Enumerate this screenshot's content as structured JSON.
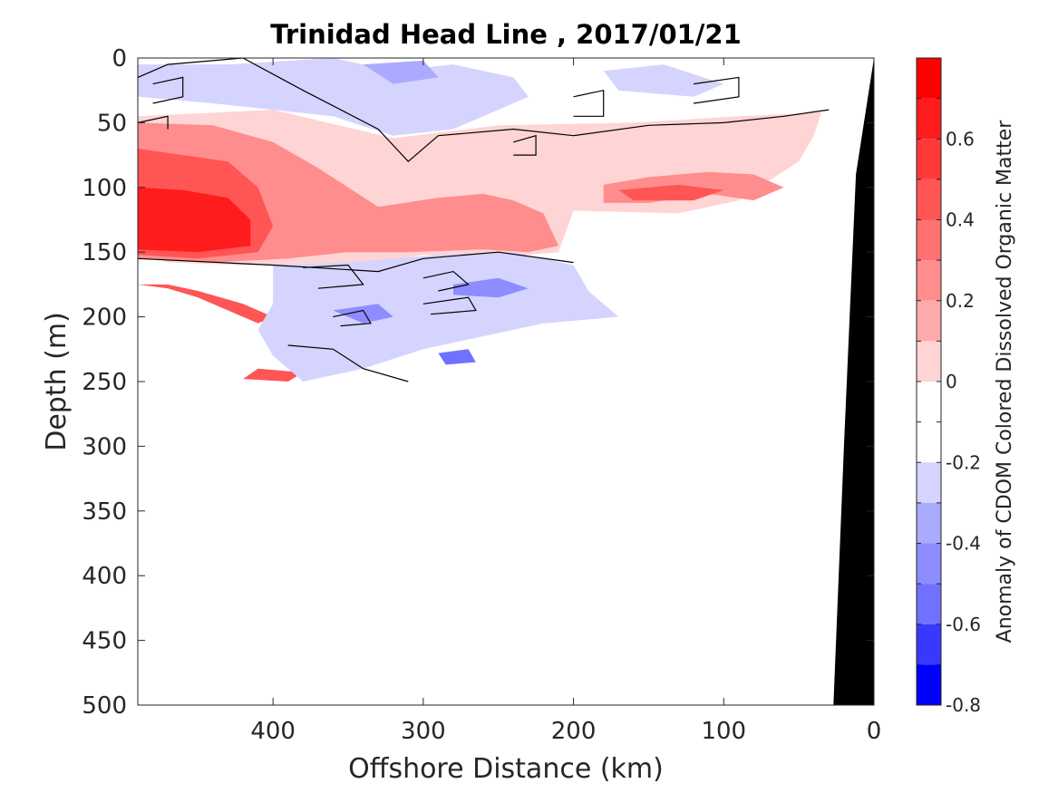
{
  "chart_data": {
    "type": "heatmap",
    "title": "Trinidad Head Line , 2017/01/21",
    "xlabel": "Offshore Distance (km)",
    "ylabel": "Depth (m)",
    "xlim": [
      490,
      0
    ],
    "ylim": [
      0,
      500
    ],
    "x_reversed": true,
    "y_reversed": true,
    "x_ticks": [
      400,
      300,
      200,
      100,
      0
    ],
    "y_ticks": [
      0,
      50,
      100,
      150,
      200,
      250,
      300,
      350,
      400,
      450,
      500
    ],
    "colorbar": {
      "label": "Anomaly of CDOM Colored Dissolved Organic Matter",
      "range": [
        -0.8,
        0.8
      ],
      "ticks": [
        0.6,
        0.4,
        0.2,
        0,
        -0.2,
        -0.4,
        -0.6,
        -0.8
      ],
      "levels": [
        {
          "from": 0.7,
          "to": 0.8,
          "color": "#ff0000"
        },
        {
          "from": 0.6,
          "to": 0.7,
          "color": "#ff1c1c"
        },
        {
          "from": 0.5,
          "to": 0.6,
          "color": "#ff3838"
        },
        {
          "from": 0.4,
          "to": 0.5,
          "color": "#ff5555"
        },
        {
          "from": 0.3,
          "to": 0.4,
          "color": "#ff7171"
        },
        {
          "from": 0.2,
          "to": 0.3,
          "color": "#ff8d8d"
        },
        {
          "from": 0.1,
          "to": 0.2,
          "color": "#ffaaaa"
        },
        {
          "from": 0.0,
          "to": 0.1,
          "color": "#ffd4d4"
        },
        {
          "from": -0.1,
          "to": 0.0,
          "color": "#ffffff"
        },
        {
          "from": -0.2,
          "to": -0.1,
          "color": "#ffffff"
        },
        {
          "from": -0.3,
          "to": -0.2,
          "color": "#d4d4ff"
        },
        {
          "from": -0.4,
          "to": -0.3,
          "color": "#aaaaff"
        },
        {
          "from": -0.5,
          "to": -0.4,
          "color": "#8d8dff"
        },
        {
          "from": -0.6,
          "to": -0.5,
          "color": "#7171ff"
        },
        {
          "from": -0.7,
          "to": -0.6,
          "color": "#3838ff"
        },
        {
          "from": -0.8,
          "to": -0.7,
          "color": "#0000ff"
        }
      ]
    },
    "regions": [
      {
        "level": 0.1,
        "color": "#ffd4d4",
        "points": [
          [
            490,
            45
          ],
          [
            400,
            40
          ],
          [
            320,
            62
          ],
          [
            250,
            52
          ],
          [
            160,
            50
          ],
          [
            90,
            45
          ],
          [
            35,
            42
          ],
          [
            40,
            60
          ],
          [
            50,
            80
          ],
          [
            90,
            110
          ],
          [
            130,
            120
          ],
          [
            200,
            118
          ],
          [
            210,
            150
          ],
          [
            260,
            155
          ],
          [
            300,
            152
          ],
          [
            340,
            160
          ],
          [
            420,
            160
          ],
          [
            470,
            158
          ],
          [
            490,
            150
          ]
        ]
      },
      {
        "level": 0.3,
        "color": "#ff8d8d",
        "points": [
          [
            490,
            50
          ],
          [
            440,
            52
          ],
          [
            400,
            65
          ],
          [
            370,
            85
          ],
          [
            350,
            100
          ],
          [
            330,
            115
          ],
          [
            290,
            108
          ],
          [
            260,
            105
          ],
          [
            240,
            110
          ],
          [
            220,
            120
          ],
          [
            210,
            145
          ],
          [
            230,
            150
          ],
          [
            260,
            148
          ],
          [
            310,
            150
          ],
          [
            350,
            150
          ],
          [
            390,
            155
          ],
          [
            440,
            158
          ],
          [
            490,
            155
          ]
        ]
      },
      {
        "level": 0.3,
        "color": "#ff8d8d",
        "points": [
          [
            180,
            98
          ],
          [
            150,
            92
          ],
          [
            110,
            88
          ],
          [
            80,
            90
          ],
          [
            60,
            100
          ],
          [
            80,
            110
          ],
          [
            110,
            105
          ],
          [
            150,
            112
          ],
          [
            180,
            112
          ]
        ]
      },
      {
        "level": 0.5,
        "color": "#ff5555",
        "points": [
          [
            490,
            70
          ],
          [
            460,
            75
          ],
          [
            430,
            80
          ],
          [
            410,
            100
          ],
          [
            400,
            130
          ],
          [
            410,
            150
          ],
          [
            450,
            155
          ],
          [
            490,
            152
          ]
        ]
      },
      {
        "level": 0.5,
        "color": "#ff5555",
        "points": [
          [
            170,
            102
          ],
          [
            130,
            98
          ],
          [
            100,
            102
          ],
          [
            120,
            110
          ],
          [
            160,
            110
          ]
        ]
      },
      {
        "level": 0.7,
        "color": "#ff1c1c",
        "points": [
          [
            490,
            100
          ],
          [
            460,
            102
          ],
          [
            430,
            108
          ],
          [
            415,
            125
          ],
          [
            415,
            145
          ],
          [
            450,
            150
          ],
          [
            490,
            148
          ]
        ]
      },
      {
        "level": 0.4,
        "color": "#ff5555",
        "points": [
          [
            490,
            175
          ],
          [
            470,
            178
          ],
          [
            450,
            185
          ],
          [
            430,
            195
          ],
          [
            410,
            205
          ],
          [
            400,
            200
          ],
          [
            420,
            190
          ],
          [
            450,
            180
          ],
          [
            470,
            175
          ]
        ]
      },
      {
        "level": 0.4,
        "color": "#ff5555",
        "points": [
          [
            410,
            240
          ],
          [
            380,
            243
          ],
          [
            390,
            250
          ],
          [
            420,
            248
          ]
        ]
      },
      {
        "level": -0.2,
        "color": "#d4d4ff",
        "points": [
          [
            490,
            5
          ],
          [
            430,
            5
          ],
          [
            360,
            0
          ],
          [
            320,
            10
          ],
          [
            280,
            5
          ],
          [
            240,
            15
          ],
          [
            230,
            30
          ],
          [
            280,
            55
          ],
          [
            320,
            60
          ],
          [
            360,
            45
          ],
          [
            400,
            40
          ],
          [
            440,
            35
          ],
          [
            490,
            30
          ]
        ]
      },
      {
        "level": -0.2,
        "color": "#d4d4ff",
        "points": [
          [
            180,
            10
          ],
          [
            140,
            5
          ],
          [
            100,
            20
          ],
          [
            120,
            30
          ],
          [
            170,
            25
          ]
        ]
      },
      {
        "level": -0.3,
        "color": "#aaaaff",
        "points": [
          [
            340,
            5
          ],
          [
            300,
            2
          ],
          [
            290,
            15
          ],
          [
            320,
            20
          ]
        ]
      },
      {
        "level": -0.2,
        "color": "#d4d4ff",
        "points": [
          [
            400,
            160
          ],
          [
            350,
            158
          ],
          [
            290,
            152
          ],
          [
            240,
            150
          ],
          [
            200,
            160
          ],
          [
            190,
            180
          ],
          [
            170,
            200
          ],
          [
            220,
            205
          ],
          [
            260,
            215
          ],
          [
            300,
            225
          ],
          [
            340,
            240
          ],
          [
            380,
            250
          ],
          [
            400,
            230
          ],
          [
            410,
            210
          ],
          [
            400,
            190
          ]
        ]
      },
      {
        "level": -0.4,
        "color": "#8d8dff",
        "points": [
          [
            280,
            175
          ],
          [
            250,
            170
          ],
          [
            230,
            178
          ],
          [
            250,
            185
          ],
          [
            280,
            183
          ]
        ]
      },
      {
        "level": -0.4,
        "color": "#8d8dff",
        "points": [
          [
            360,
            195
          ],
          [
            330,
            190
          ],
          [
            320,
            200
          ],
          [
            340,
            205
          ]
        ]
      },
      {
        "level": -0.5,
        "color": "#7171ff",
        "points": [
          [
            290,
            228
          ],
          [
            270,
            225
          ],
          [
            265,
            235
          ],
          [
            285,
            237
          ]
        ]
      }
    ],
    "contours": [
      [
        [
          490,
          15
        ],
        [
          470,
          5
        ],
        [
          420,
          0
        ],
        [
          380,
          25
        ],
        [
          330,
          55
        ],
        [
          310,
          80
        ],
        [
          290,
          60
        ],
        [
          240,
          55
        ],
        [
          200,
          60
        ],
        [
          150,
          52
        ],
        [
          100,
          50
        ],
        [
          60,
          45
        ],
        [
          30,
          40
        ]
      ],
      [
        [
          480,
          20
        ],
        [
          460,
          15
        ],
        [
          460,
          30
        ],
        [
          480,
          35
        ]
      ],
      [
        [
          490,
          50
        ],
        [
          470,
          45
        ],
        [
          470,
          55
        ]
      ],
      [
        [
          200,
          30
        ],
        [
          180,
          25
        ],
        [
          180,
          45
        ],
        [
          200,
          45
        ]
      ],
      [
        [
          240,
          65
        ],
        [
          225,
          60
        ],
        [
          225,
          75
        ],
        [
          240,
          75
        ]
      ],
      [
        [
          120,
          20
        ],
        [
          90,
          15
        ],
        [
          90,
          30
        ],
        [
          120,
          35
        ]
      ],
      [
        [
          490,
          155
        ],
        [
          400,
          160
        ],
        [
          330,
          165
        ],
        [
          300,
          155
        ],
        [
          250,
          150
        ],
        [
          200,
          158
        ]
      ],
      [
        [
          380,
          162
        ],
        [
          350,
          160
        ],
        [
          340,
          175
        ],
        [
          370,
          178
        ]
      ],
      [
        [
          300,
          170
        ],
        [
          280,
          165
        ],
        [
          270,
          175
        ],
        [
          290,
          180
        ]
      ],
      [
        [
          300,
          190
        ],
        [
          270,
          185
        ],
        [
          265,
          195
        ],
        [
          295,
          198
        ]
      ],
      [
        [
          360,
          200
        ],
        [
          340,
          195
        ],
        [
          335,
          205
        ],
        [
          355,
          207
        ]
      ],
      [
        [
          390,
          222
        ],
        [
          360,
          225
        ],
        [
          340,
          240
        ],
        [
          310,
          250
        ]
      ]
    ],
    "bathymetry": [
      [
        27,
        500
      ],
      [
        0,
        500
      ],
      [
        0,
        0
      ],
      [
        12,
        90
      ],
      [
        20,
        300
      ],
      [
        27,
        500
      ]
    ]
  }
}
